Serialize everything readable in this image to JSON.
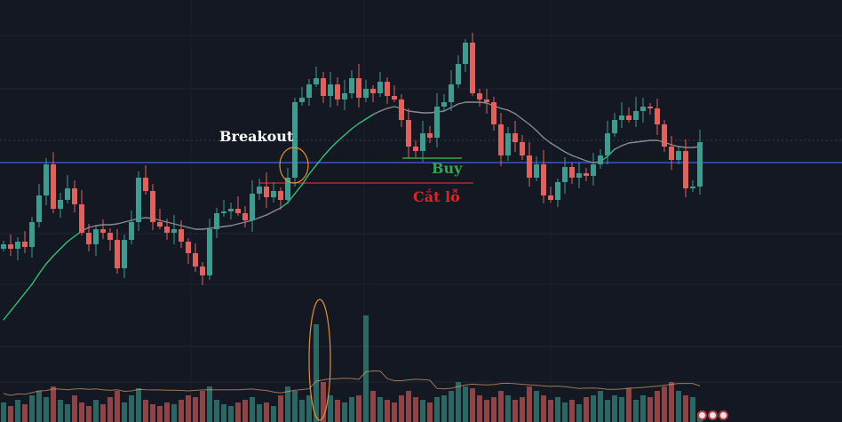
{
  "chart_data": {
    "type": "candlestick",
    "title": "",
    "xlabel": "",
    "ylabel": "",
    "ylim": [
      25,
      500
    ],
    "note_open": "each candle opens at previous close",
    "close": [
      225,
      220,
      228,
      222,
      250,
      280,
      315,
      265,
      275,
      288,
      270,
      238,
      225,
      242,
      238,
      230,
      198,
      230,
      250,
      300,
      285,
      250,
      245,
      238,
      242,
      228,
      215,
      200,
      190,
      242,
      260,
      262,
      265,
      260,
      252,
      282,
      290,
      278,
      285,
      275,
      300,
      385,
      390,
      405,
      412,
      392,
      405,
      388,
      395,
      412,
      390,
      400,
      395,
      408,
      392,
      388,
      365,
      335,
      330,
      350,
      345,
      380,
      385,
      405,
      428,
      452,
      395,
      388,
      385,
      360,
      325,
      350,
      340,
      325,
      300,
      315,
      280,
      275,
      295,
      312,
      300,
      305,
      302,
      315,
      325,
      350,
      365,
      370,
      365,
      375,
      380,
      378,
      360,
      335,
      320,
      330,
      288,
      290,
      340
    ],
    "moving_average": [
      140,
      150,
      160,
      170,
      180,
      192,
      203,
      212,
      220,
      228,
      234,
      240,
      244,
      246,
      247,
      247,
      248,
      250,
      252,
      254,
      255,
      254,
      252,
      250,
      248,
      246,
      244,
      242,
      242,
      243,
      244,
      245,
      246,
      248,
      250,
      252,
      255,
      258,
      262,
      266,
      272,
      282,
      292,
      304,
      314,
      324,
      333,
      341,
      348,
      355,
      361,
      366,
      371,
      375,
      378,
      380,
      378,
      375,
      374,
      373,
      373,
      374,
      375,
      379,
      383,
      385,
      385,
      385,
      384,
      381,
      378,
      376,
      372,
      366,
      360,
      353,
      345,
      339,
      334,
      329,
      325,
      322,
      319,
      317,
      318,
      324,
      332,
      336,
      339,
      340,
      341,
      342,
      342,
      340,
      337,
      335,
      334,
      334,
      335
    ],
    "volume": [
      22,
      18,
      25,
      20,
      30,
      35,
      28,
      40,
      25,
      20,
      30,
      22,
      18,
      25,
      20,
      28,
      35,
      22,
      30,
      38,
      25,
      20,
      18,
      22,
      20,
      25,
      30,
      28,
      35,
      40,
      25,
      20,
      18,
      22,
      25,
      28,
      20,
      22,
      18,
      30,
      40,
      35,
      25,
      30,
      110,
      45,
      30,
      25,
      22,
      28,
      30,
      120,
      35,
      28,
      25,
      22,
      30,
      35,
      28,
      25,
      22,
      28,
      30,
      35,
      45,
      40,
      38,
      30,
      25,
      28,
      35,
      30,
      25,
      28,
      40,
      35,
      30,
      25,
      28,
      22,
      25,
      20,
      28,
      30,
      35,
      25,
      30,
      28,
      38,
      25,
      30,
      28,
      35,
      40,
      45,
      35,
      30,
      28,
      10
    ],
    "levels": {
      "resistance": 317,
      "buy": 322,
      "stop_loss": 294
    },
    "annotations": {
      "breakout": "Breakout",
      "buy": "Buy",
      "stop_loss": "Cắt lỗ"
    },
    "colors": {
      "up": "#3d9c8f",
      "down": "#e0625f",
      "resistance": "#3557c8",
      "buy": "#2fa84f",
      "stop_loss": "#d8262b",
      "ma_rising": "#35c27a",
      "ma_flat": "#8a8a8e",
      "highlight": "#e8902a",
      "volume_ma": "#d9a06a"
    }
  }
}
